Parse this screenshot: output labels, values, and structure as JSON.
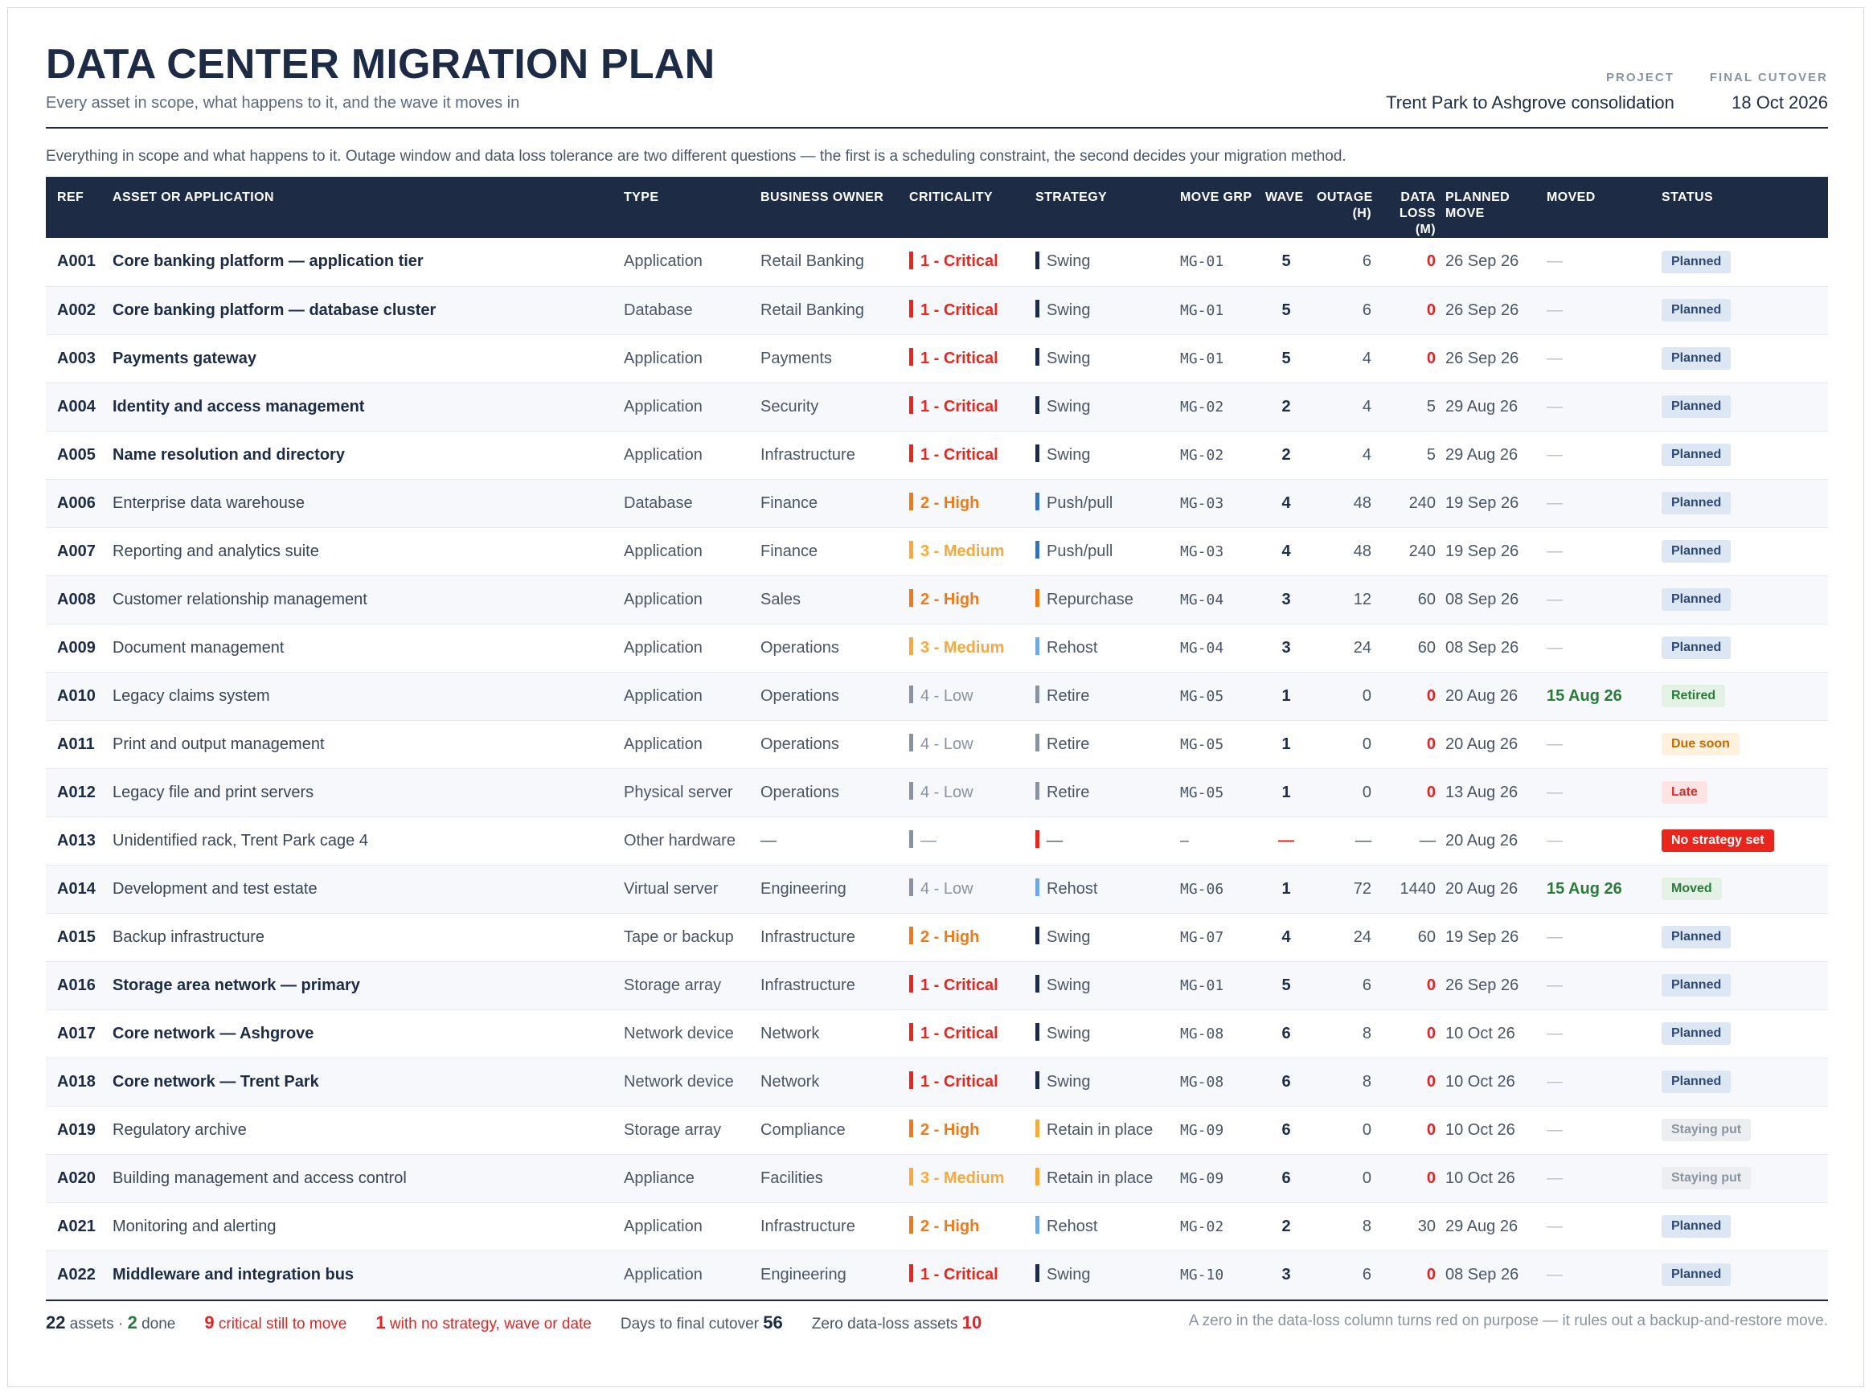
{
  "header": {
    "title": "DATA CENTER MIGRATION PLAN",
    "subtitle": "Every asset in scope, what happens to it, and the wave it moves in",
    "project_label": "PROJECT",
    "project_value": "Trent Park to Ashgrove consolidation",
    "cutover_label": "FINAL CUTOVER",
    "cutover_value": "18 Oct 2026"
  },
  "intro": "Everything in scope and what happens to it. Outage window and data loss tolerance are two different questions — the first is a scheduling constraint, the second decides your migration method.",
  "columns": {
    "ref": "REF",
    "asset": "ASSET OR APPLICATION",
    "type": "TYPE",
    "owner": "BUSINESS OWNER",
    "criticality": "CRITICALITY",
    "strategy": "STRATEGY",
    "group": "MOVE GRP",
    "wave": "WAVE",
    "outage": "OUTAGE (H)",
    "loss": "DATA LOSS (M)",
    "planned": "PLANNED MOVE",
    "moved": "MOVED",
    "status": "STATUS"
  },
  "colors": {
    "critical": "#e8261d",
    "high": "#f07a1a",
    "medium": "#f7a93b",
    "low": "#8a93a0",
    "swing": "#1d2b45",
    "pushpull": "#3570b8",
    "repurchase": "#f07a1a",
    "rehost": "#6fa8e8",
    "retire": "#8a93a0",
    "retain": "#f7a93b"
  },
  "rows": [
    {
      "ref": "A001",
      "name": "Core banking platform — application tier",
      "bold": true,
      "type": "Application",
      "owner": "Retail Banking",
      "crit": "1 - Critical",
      "crit_key": "critical",
      "strategy": "Swing",
      "strat_key": "swing",
      "group": "MG-01",
      "wave": "5",
      "outage": "6",
      "loss": "0",
      "planned": "26 Sep 26",
      "moved": "—",
      "status": "Planned",
      "status_key": "planned"
    },
    {
      "ref": "A002",
      "name": "Core banking platform — database cluster",
      "bold": true,
      "type": "Database",
      "owner": "Retail Banking",
      "crit": "1 - Critical",
      "crit_key": "critical",
      "strategy": "Swing",
      "strat_key": "swing",
      "group": "MG-01",
      "wave": "5",
      "outage": "6",
      "loss": "0",
      "planned": "26 Sep 26",
      "moved": "—",
      "status": "Planned",
      "status_key": "planned"
    },
    {
      "ref": "A003",
      "name": "Payments gateway",
      "bold": true,
      "type": "Application",
      "owner": "Payments",
      "crit": "1 - Critical",
      "crit_key": "critical",
      "strategy": "Swing",
      "strat_key": "swing",
      "group": "MG-01",
      "wave": "5",
      "outage": "4",
      "loss": "0",
      "planned": "26 Sep 26",
      "moved": "—",
      "status": "Planned",
      "status_key": "planned"
    },
    {
      "ref": "A004",
      "name": "Identity and access management",
      "bold": true,
      "type": "Application",
      "owner": "Security",
      "crit": "1 - Critical",
      "crit_key": "critical",
      "strategy": "Swing",
      "strat_key": "swing",
      "group": "MG-02",
      "wave": "2",
      "outage": "4",
      "loss": "5",
      "planned": "29 Aug 26",
      "moved": "—",
      "status": "Planned",
      "status_key": "planned"
    },
    {
      "ref": "A005",
      "name": "Name resolution and directory",
      "bold": true,
      "type": "Application",
      "owner": "Infrastructure",
      "crit": "1 - Critical",
      "crit_key": "critical",
      "strategy": "Swing",
      "strat_key": "swing",
      "group": "MG-02",
      "wave": "2",
      "outage": "4",
      "loss": "5",
      "planned": "29 Aug 26",
      "moved": "—",
      "status": "Planned",
      "status_key": "planned"
    },
    {
      "ref": "A006",
      "name": "Enterprise data warehouse",
      "bold": false,
      "type": "Database",
      "owner": "Finance",
      "crit": "2 - High",
      "crit_key": "high",
      "strategy": "Push/pull",
      "strat_key": "pushpull",
      "group": "MG-03",
      "wave": "4",
      "outage": "48",
      "loss": "240",
      "planned": "19 Sep 26",
      "moved": "—",
      "status": "Planned",
      "status_key": "planned"
    },
    {
      "ref": "A007",
      "name": "Reporting and analytics suite",
      "bold": false,
      "type": "Application",
      "owner": "Finance",
      "crit": "3 - Medium",
      "crit_key": "medium",
      "strategy": "Push/pull",
      "strat_key": "pushpull",
      "group": "MG-03",
      "wave": "4",
      "outage": "48",
      "loss": "240",
      "planned": "19 Sep 26",
      "moved": "—",
      "status": "Planned",
      "status_key": "planned"
    },
    {
      "ref": "A008",
      "name": "Customer relationship management",
      "bold": false,
      "type": "Application",
      "owner": "Sales",
      "crit": "2 - High",
      "crit_key": "high",
      "strategy": "Repurchase",
      "strat_key": "repurchase",
      "group": "MG-04",
      "wave": "3",
      "outage": "12",
      "loss": "60",
      "planned": "08 Sep 26",
      "moved": "—",
      "status": "Planned",
      "status_key": "planned"
    },
    {
      "ref": "A009",
      "name": "Document management",
      "bold": false,
      "type": "Application",
      "owner": "Operations",
      "crit": "3 - Medium",
      "crit_key": "medium",
      "strategy": "Rehost",
      "strat_key": "rehost",
      "group": "MG-04",
      "wave": "3",
      "outage": "24",
      "loss": "60",
      "planned": "08 Sep 26",
      "moved": "—",
      "status": "Planned",
      "status_key": "planned"
    },
    {
      "ref": "A010",
      "name": "Legacy claims system",
      "bold": false,
      "type": "Application",
      "owner": "Operations",
      "crit": "4 - Low",
      "crit_key": "low",
      "strategy": "Retire",
      "strat_key": "retire",
      "group": "MG-05",
      "wave": "1",
      "outage": "0",
      "loss": "0",
      "planned": "20 Aug 26",
      "moved": "15 Aug 26",
      "status": "Retired",
      "status_key": "retired"
    },
    {
      "ref": "A011",
      "name": "Print and output management",
      "bold": false,
      "type": "Application",
      "owner": "Operations",
      "crit": "4 - Low",
      "crit_key": "low",
      "strategy": "Retire",
      "strat_key": "retire",
      "group": "MG-05",
      "wave": "1",
      "outage": "0",
      "loss": "0",
      "planned": "20 Aug 26",
      "moved": "—",
      "status": "Due soon",
      "status_key": "due"
    },
    {
      "ref": "A012",
      "name": "Legacy file and print servers",
      "bold": false,
      "type": "Physical server",
      "owner": "Operations",
      "crit": "4 - Low",
      "crit_key": "low",
      "strategy": "Retire",
      "strat_key": "retire",
      "group": "MG-05",
      "wave": "1",
      "outage": "0",
      "loss": "0",
      "planned": "13 Aug 26",
      "moved": "—",
      "status": "Late",
      "status_key": "late"
    },
    {
      "ref": "A013",
      "name": "Unidentified rack, Trent Park cage 4",
      "bold": false,
      "type": "Other hardware",
      "owner": "—",
      "crit": "—",
      "crit_key": "low",
      "strategy": "—",
      "strat_key": "critical",
      "group": "—",
      "wave": "—",
      "outage": "—",
      "loss": "—",
      "planned": "20 Aug 26",
      "moved": "—",
      "status": "No strategy set",
      "status_key": "nostrat"
    },
    {
      "ref": "A014",
      "name": "Development and test estate",
      "bold": false,
      "type": "Virtual server",
      "owner": "Engineering",
      "crit": "4 - Low",
      "crit_key": "low",
      "strategy": "Rehost",
      "strat_key": "rehost",
      "group": "MG-06",
      "wave": "1",
      "outage": "72",
      "loss": "1440",
      "planned": "20 Aug 26",
      "moved": "15 Aug 26",
      "status": "Moved",
      "status_key": "moved"
    },
    {
      "ref": "A015",
      "name": "Backup infrastructure",
      "bold": false,
      "type": "Tape or backup",
      "owner": "Infrastructure",
      "crit": "2 - High",
      "crit_key": "high",
      "strategy": "Swing",
      "strat_key": "swing",
      "group": "MG-07",
      "wave": "4",
      "outage": "24",
      "loss": "60",
      "planned": "19 Sep 26",
      "moved": "—",
      "status": "Planned",
      "status_key": "planned"
    },
    {
      "ref": "A016",
      "name": "Storage area network — primary",
      "bold": true,
      "type": "Storage array",
      "owner": "Infrastructure",
      "crit": "1 - Critical",
      "crit_key": "critical",
      "strategy": "Swing",
      "strat_key": "swing",
      "group": "MG-01",
      "wave": "5",
      "outage": "6",
      "loss": "0",
      "planned": "26 Sep 26",
      "moved": "—",
      "status": "Planned",
      "status_key": "planned"
    },
    {
      "ref": "A017",
      "name": "Core network — Ashgrove",
      "bold": true,
      "type": "Network device",
      "owner": "Network",
      "crit": "1 - Critical",
      "crit_key": "critical",
      "strategy": "Swing",
      "strat_key": "swing",
      "group": "MG-08",
      "wave": "6",
      "outage": "8",
      "loss": "0",
      "planned": "10 Oct 26",
      "moved": "—",
      "status": "Planned",
      "status_key": "planned"
    },
    {
      "ref": "A018",
      "name": "Core network — Trent Park",
      "bold": true,
      "type": "Network device",
      "owner": "Network",
      "crit": "1 - Critical",
      "crit_key": "critical",
      "strategy": "Swing",
      "strat_key": "swing",
      "group": "MG-08",
      "wave": "6",
      "outage": "8",
      "loss": "0",
      "planned": "10 Oct 26",
      "moved": "—",
      "status": "Planned",
      "status_key": "planned"
    },
    {
      "ref": "A019",
      "name": "Regulatory archive",
      "bold": false,
      "type": "Storage array",
      "owner": "Compliance",
      "crit": "2 - High",
      "crit_key": "high",
      "strategy": "Retain in place",
      "strat_key": "retain",
      "group": "MG-09",
      "wave": "6",
      "outage": "0",
      "loss": "0",
      "planned": "10 Oct 26",
      "moved": "—",
      "status": "Staying put",
      "status_key": "staying"
    },
    {
      "ref": "A020",
      "name": "Building management and access control",
      "bold": false,
      "type": "Appliance",
      "owner": "Facilities",
      "crit": "3 - Medium",
      "crit_key": "medium",
      "strategy": "Retain in place",
      "strat_key": "retain",
      "group": "MG-09",
      "wave": "6",
      "outage": "0",
      "loss": "0",
      "planned": "10 Oct 26",
      "moved": "—",
      "status": "Staying put",
      "status_key": "staying"
    },
    {
      "ref": "A021",
      "name": "Monitoring and alerting",
      "bold": false,
      "type": "Application",
      "owner": "Infrastructure",
      "crit": "2 - High",
      "crit_key": "high",
      "strategy": "Rehost",
      "strat_key": "rehost",
      "group": "MG-02",
      "wave": "2",
      "outage": "8",
      "loss": "30",
      "planned": "29 Aug 26",
      "moved": "—",
      "status": "Planned",
      "status_key": "planned"
    },
    {
      "ref": "A022",
      "name": "Middleware and integration bus",
      "bold": true,
      "type": "Application",
      "owner": "Engineering",
      "crit": "1 - Critical",
      "crit_key": "critical",
      "strategy": "Swing",
      "strat_key": "swing",
      "group": "MG-10",
      "wave": "3",
      "outage": "6",
      "loss": "0",
      "planned": "08 Sep 26",
      "moved": "—",
      "status": "Planned",
      "status_key": "planned"
    }
  ],
  "footer": {
    "assets_count": "22",
    "assets_label": "assets ·",
    "done_count": "2",
    "done_label": "done",
    "critical_count": "9",
    "critical_label": "critical still to move",
    "nostrat_count": "1",
    "nostrat_label": "with no strategy, wave or date",
    "days_label": "Days to final cutover",
    "days_value": "56",
    "zero_label": "Zero data-loss assets",
    "zero_value": "10",
    "note": "A zero in the data-loss column turns red on purpose — it rules out a backup-and-restore move."
  }
}
